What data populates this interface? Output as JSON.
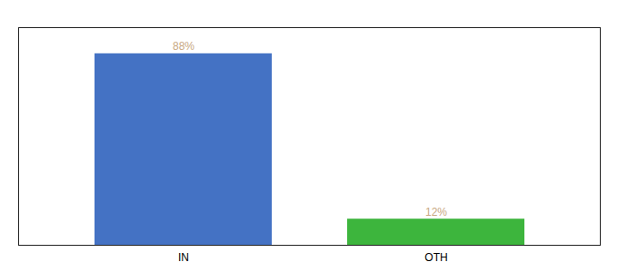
{
  "chart_data": {
    "type": "bar",
    "categories": [
      "IN",
      "OTH"
    ],
    "values": [
      88,
      12
    ],
    "value_labels": [
      "88%",
      "12%"
    ],
    "colors": [
      "#4472c4",
      "#3db53d"
    ],
    "ylim": [
      0,
      100
    ],
    "data_labels": true,
    "tick_labels": "x"
  }
}
